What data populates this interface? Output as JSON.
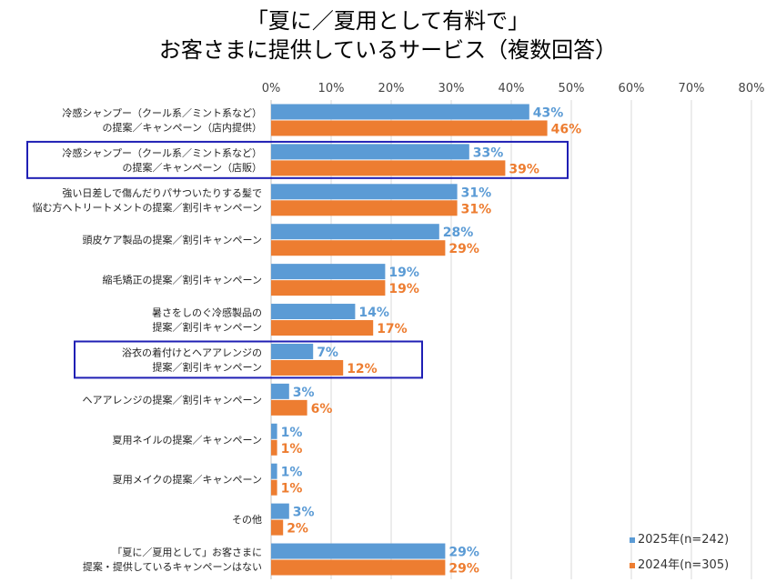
{
  "chart_data": {
    "type": "bar",
    "orientation": "horizontal",
    "title_line1": "「夏に／夏用として有料で」",
    "title_line2": "お客さまに提供しているサービス（複数回答）",
    "xlim": [
      0,
      80
    ],
    "xticks": [
      "0%",
      "10%",
      "20%",
      "30%",
      "40%",
      "50%",
      "60%",
      "70%",
      "80%"
    ],
    "grid": true,
    "legend_position": "bottom-right",
    "categories": [
      [
        "冷感シャンプー（クール系／ミント系など）",
        "の提案／キャンペーン（店内提供）"
      ],
      [
        "冷感シャンプー（クール系／ミント系など）",
        "の提案／キャンペーン（店販）"
      ],
      [
        "強い日差しで傷んだりパサついたりする髪で",
        "悩む方へトリートメントの提案／割引キャンペーン"
      ],
      [
        "頭皮ケア製品の提案／割引キャンペーン"
      ],
      [
        "縮毛矯正の提案／割引キャンペーン"
      ],
      [
        "暑さをしのぐ冷感製品の",
        "提案／割引キャンペーン"
      ],
      [
        "浴衣の着付けとヘアアレンジの",
        "提案／割引キャンペーン"
      ],
      [
        "ヘアアレンジの提案／割引キャンペーン"
      ],
      [
        "夏用ネイルの提案／キャンペーン"
      ],
      [
        "夏用メイクの提案／キャンペーン"
      ],
      [
        "その他"
      ],
      [
        "「夏に／夏用として」お客さまに",
        "提案・提供しているキャンペーンはない"
      ]
    ],
    "highlighted_categories": [
      1,
      6
    ],
    "series": [
      {
        "name": "2025年(n=242)",
        "color": "#5b9bd5",
        "values": [
          43,
          33,
          31,
          28,
          19,
          14,
          7,
          3,
          1,
          1,
          3,
          29
        ],
        "labels": [
          "43%",
          "33%",
          "31%",
          "28%",
          "19%",
          "14%",
          "7%",
          "3%",
          "1%",
          "1%",
          "3%",
          "29%"
        ]
      },
      {
        "name": "2024年(n=305)",
        "color": "#ed7d31",
        "values": [
          46,
          39,
          31,
          29,
          19,
          17,
          12,
          6,
          1,
          1,
          2,
          29
        ],
        "labels": [
          "46%",
          "39%",
          "31%",
          "29%",
          "19%",
          "17%",
          "12%",
          "6%",
          "1%",
          "1%",
          "2%",
          "29%"
        ]
      }
    ],
    "highlight_color": "#1f1fb4",
    "grid_color": "#d9d9d9"
  }
}
